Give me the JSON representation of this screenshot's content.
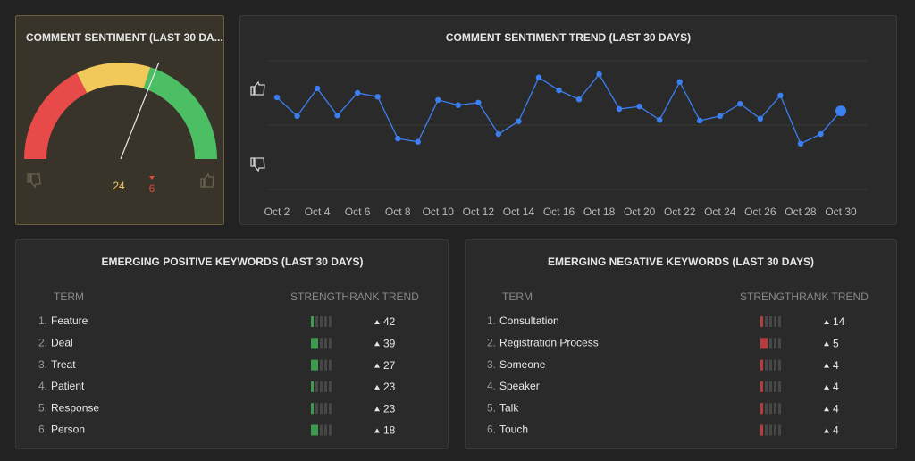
{
  "gauge": {
    "type": "gauge",
    "title": "COMMENT SENTIMENT (LAST 30 DA...",
    "value": 24,
    "change": 6,
    "change_direction": "down",
    "ylim": [
      -100,
      100
    ],
    "bands": [
      {
        "from": -100,
        "to": -30,
        "color": "#e84a4a"
      },
      {
        "from": -30,
        "to": 20,
        "color": "#f0c95a"
      },
      {
        "from": 20,
        "to": 100,
        "color": "#4cbf65"
      }
    ]
  },
  "chart_data": {
    "type": "line",
    "title": "COMMENT SENTIMENT TREND (LAST 30 DAYS)",
    "categories": [
      "Oct 2",
      null,
      "Oct 4",
      null,
      "Oct 6",
      null,
      "Oct 8",
      null,
      "Oct 10",
      null,
      "Oct 12",
      null,
      "Oct 14",
      null,
      "Oct 16",
      null,
      "Oct 18",
      null,
      "Oct 20",
      null,
      "Oct 22",
      null,
      "Oct 24",
      null,
      "Oct 26",
      null,
      "Oct 28",
      null,
      "Oct 30"
    ],
    "values": [
      0.43,
      0.14,
      0.57,
      0.15,
      0.5,
      0.44,
      -0.21,
      -0.26,
      0.39,
      0.31,
      0.35,
      -0.14,
      0.06,
      0.74,
      0.54,
      0.4,
      0.79,
      0.25,
      0.29,
      0.08,
      0.67,
      0.07,
      0.14,
      0.33,
      0.1,
      0.46,
      -0.29,
      -0.14,
      0.22
    ],
    "color": "#3b7ff0",
    "ylim": [
      -1,
      1
    ],
    "yticks": [
      -1,
      0,
      1
    ],
    "grid": true
  },
  "positive": {
    "title": "EMERGING POSITIVE KEYWORDS (LAST 30 DAYS)",
    "headers": [
      "TERM",
      "STRENGTH",
      "RANK TREND"
    ],
    "color": "#3f9a4f",
    "strength_lim": [
      0,
      5
    ],
    "rows": [
      {
        "number": "1.",
        "term": "Feature",
        "strength": 1,
        "rank_trend": 42
      },
      {
        "number": "2.",
        "term": "Deal",
        "strength": 2,
        "rank_trend": 39
      },
      {
        "number": "3.",
        "term": "Treat",
        "strength": 2,
        "rank_trend": 27
      },
      {
        "number": "4.",
        "term": "Patient",
        "strength": 1,
        "rank_trend": 23
      },
      {
        "number": "5.",
        "term": "Response",
        "strength": 1,
        "rank_trend": 23
      },
      {
        "number": "6.",
        "term": "Person",
        "strength": 2,
        "rank_trend": 18
      }
    ]
  },
  "negative": {
    "title": "EMERGING NEGATIVE KEYWORDS (LAST 30 DAYS)",
    "headers": [
      "TERM",
      "STRENGTH",
      "RANK TREND"
    ],
    "color": "#b83c3c",
    "strength_lim": [
      0,
      5
    ],
    "rows": [
      {
        "number": "1.",
        "term": "Consultation",
        "strength": 1,
        "rank_trend": 14
      },
      {
        "number": "2.",
        "term": "Registration Process",
        "strength": 2,
        "rank_trend": 5
      },
      {
        "number": "3.",
        "term": "Someone",
        "strength": 1,
        "rank_trend": 4
      },
      {
        "number": "4.",
        "term": "Speaker",
        "strength": 1,
        "rank_trend": 4
      },
      {
        "number": "5.",
        "term": "Talk",
        "strength": 1,
        "rank_trend": 4
      },
      {
        "number": "6.",
        "term": "Touch",
        "strength": 1,
        "rank_trend": 4
      }
    ]
  }
}
